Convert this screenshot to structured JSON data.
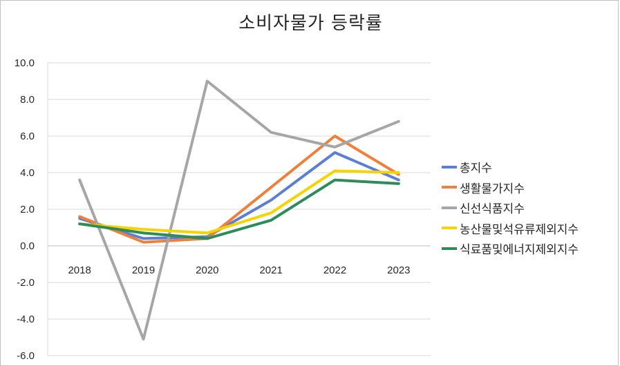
{
  "chart_data": {
    "type": "line",
    "title": "소비자물가 등락률",
    "categories": [
      "2018",
      "2019",
      "2020",
      "2021",
      "2022",
      "2023"
    ],
    "ylim": [
      -6.0,
      10.0
    ],
    "yticks": [
      "10.0",
      "8.0",
      "6.0",
      "4.0",
      "2.0",
      "0.0",
      "-2.0",
      "-4.0",
      "-6.0"
    ],
    "grid": "horizontal",
    "legend_position": "right",
    "series": [
      {
        "name": "총지수",
        "color": "#5b7fd6",
        "values": [
          1.5,
          0.4,
          0.5,
          2.5,
          5.1,
          3.6
        ]
      },
      {
        "name": "생활물가지수",
        "color": "#f07f3a",
        "values": [
          1.6,
          0.2,
          0.4,
          3.2,
          6.0,
          3.9
        ]
      },
      {
        "name": "신선식품지수",
        "color": "#a6a6a6",
        "values": [
          3.6,
          -5.1,
          9.0,
          6.2,
          5.4,
          6.8
        ]
      },
      {
        "name": "농산물및석유류제외지수",
        "color": "#f5d400",
        "values": [
          1.2,
          0.9,
          0.7,
          1.8,
          4.1,
          4.0
        ]
      },
      {
        "name": "식료품및에너지제외지수",
        "color": "#2e8b5a",
        "values": [
          1.2,
          0.7,
          0.4,
          1.4,
          3.6,
          3.4
        ]
      }
    ]
  }
}
